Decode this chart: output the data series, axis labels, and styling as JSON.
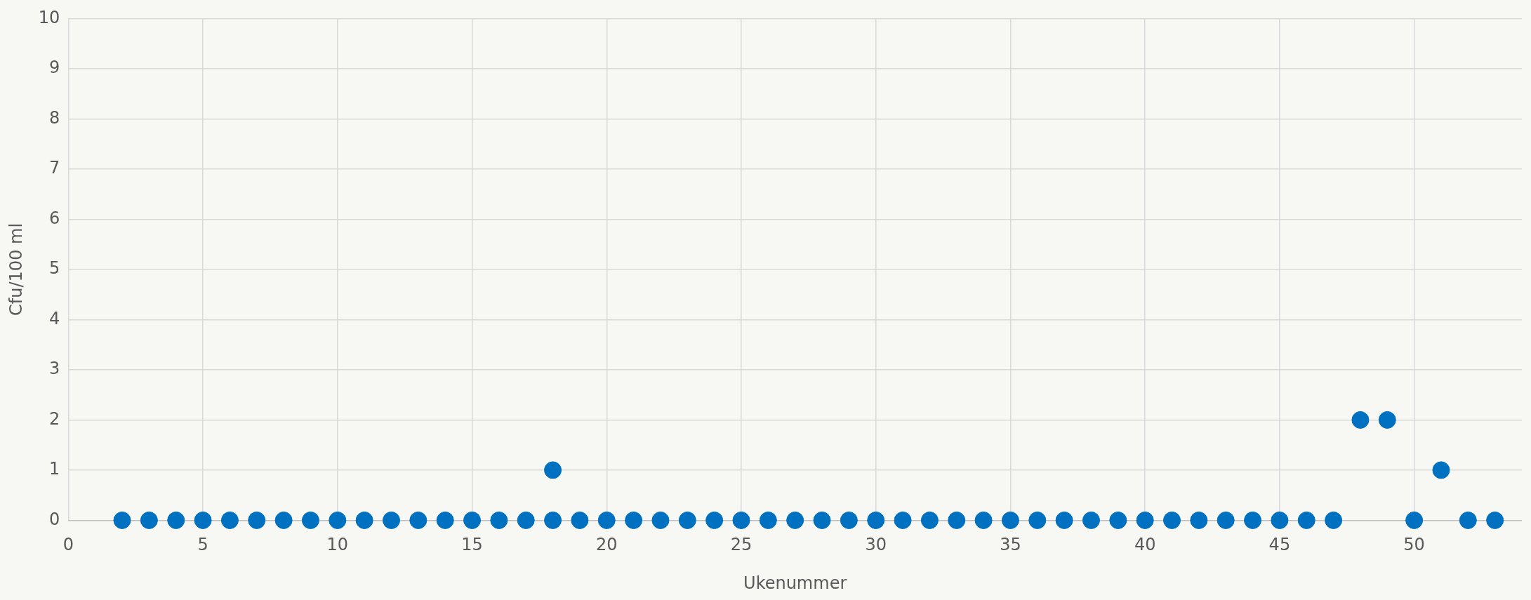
{
  "chart_data": {
    "type": "scatter",
    "xlabel": "Ukenummer",
    "ylabel": "Cfu/100 ml",
    "series": [
      {
        "color": "#0070c0",
        "x": [
          2,
          3,
          4,
          5,
          6,
          7,
          8,
          9,
          10,
          11,
          12,
          13,
          14,
          15,
          16,
          17,
          18,
          18,
          19,
          20,
          21,
          22,
          23,
          24,
          25,
          26,
          27,
          28,
          29,
          30,
          31,
          32,
          33,
          34,
          35,
          36,
          37,
          38,
          39,
          40,
          41,
          42,
          43,
          44,
          45,
          46,
          47,
          48,
          49,
          50,
          51,
          52,
          53
        ],
        "values": [
          0,
          0,
          0,
          0,
          0,
          0,
          0,
          0,
          0,
          0,
          0,
          0,
          0,
          0,
          0,
          0,
          0,
          1,
          0,
          0,
          0,
          0,
          0,
          0,
          0,
          0,
          0,
          0,
          0,
          0,
          0,
          0,
          0,
          0,
          0,
          0,
          0,
          0,
          0,
          0,
          0,
          0,
          0,
          0,
          0,
          0,
          0,
          2,
          2,
          0,
          1,
          0,
          0
        ]
      }
    ],
    "xlim": [
      0,
      54
    ],
    "xticks": [
      0,
      5,
      10,
      15,
      20,
      25,
      30,
      35,
      40,
      45,
      50
    ],
    "ylim": [
      0,
      10
    ],
    "yticks": [
      0,
      1,
      2,
      3,
      4,
      5,
      6,
      7,
      8,
      9,
      10
    ],
    "grid": true,
    "legend": false,
    "marker": "circle"
  }
}
